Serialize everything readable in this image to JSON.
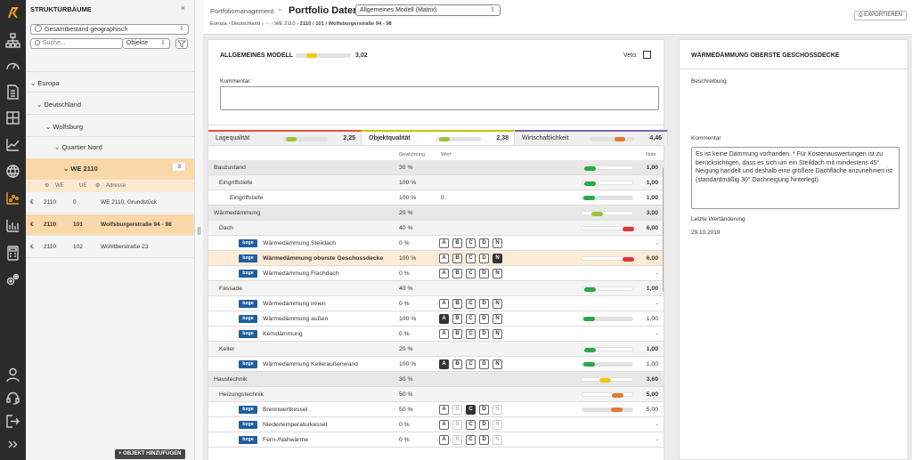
{
  "rail": {
    "icons": [
      "logo-icon",
      "hierarchy-icon",
      "dashboard-icon",
      "document-icon",
      "building-icon",
      "line-chart-icon",
      "globe-icon",
      "portfolio-chart-icon",
      "bar-chart-icon",
      "calculator-icon",
      "settings-icon",
      "user-icon",
      "support-icon",
      "logout-icon",
      "expand-icon"
    ]
  },
  "tree": {
    "title": "STRUKTURBÄUME",
    "close": "×",
    "scope": "Gesamtbestand geographisch",
    "scope_arrow": "⇕",
    "search_placeholder": "Suche...",
    "search_type": "Objekte",
    "nodes": {
      "europa": "Europa",
      "deutschland": "Deutschland",
      "wolfsburg": "Wolfsburg",
      "quartier": "Quartier Nord",
      "we": "WE 2110",
      "we_count": "3"
    },
    "cols": {
      "we": "WE",
      "ue": "UE",
      "adresse": "Adresse"
    },
    "rows": [
      {
        "cur": "€",
        "we": "2110",
        "ue": "0",
        "addr": "WE 2110, Grundstück"
      },
      {
        "cur": "€",
        "we": "2110",
        "ue": "101",
        "addr": "Wolfsburgerstraße 94 - 98"
      },
      {
        "cur": "€",
        "we": "2110",
        "ue": "102",
        "addr": "Wohltberstraße 23"
      }
    ],
    "add_button": "+ OBJEKT HINZUFÜGEN"
  },
  "header": {
    "crumb_parent": "Portfoliomanagement",
    "sep": "›",
    "title": "Portfolio Daten",
    "model_select": "Allgemeines Modell (Matrix)",
    "model_arrow": "⇕",
    "path": [
      "Europa",
      "Deutschland",
      "···",
      "WE 2110",
      "2110 / 101 / Wolfsburgerstraße 94 - 98"
    ],
    "export": "EXPORTIEREN"
  },
  "model": {
    "title": "ALLGEMEINES MODELL",
    "score": "3,02",
    "score_fill": 0.35,
    "veto": "Veto:",
    "comment_label": "Kommentar:"
  },
  "tabs": [
    {
      "label": "Lagequalität",
      "score": "2,25",
      "fill": 0.3,
      "color": "#9dc33b",
      "line": "#e0523a"
    },
    {
      "label": "Objektqualität",
      "score": "2,38",
      "fill": 0.3,
      "color": "#9dc33b",
      "line": "#c8c200"
    },
    {
      "label": "Wirtschaftlichkeit",
      "score": "4,46",
      "fill": 0.8,
      "color": "#e07b2f",
      "line": "#7b68b5"
    }
  ],
  "grid_head": {
    "gew": "Gewichtung",
    "wert": "Wert",
    "note": "Note"
  },
  "grid": [
    {
      "k": "grp",
      "ind": 6,
      "name": "Bauzustand",
      "gew": "30 %",
      "fill": 0.25,
      "color": "#2aa84a",
      "note": "1,00"
    },
    {
      "k": "sub",
      "ind": 12,
      "name": "Eingriffstiefe",
      "gew": "100 %",
      "fill": 0.25,
      "color": "#2aa84a",
      "note": "1,00"
    },
    {
      "k": "it",
      "ind": 24,
      "name": "Eingriffstiefe",
      "gew": "100 %",
      "wert": "0",
      "fill": 0.25,
      "color": "#2aa84a",
      "note": "1,00"
    },
    {
      "k": "grp",
      "ind": 6,
      "name": "Wärmedämmung",
      "gew": "20 %",
      "fill": 0.4,
      "color": "#9dc33b",
      "note": "3,00"
    },
    {
      "k": "sub",
      "ind": 12,
      "name": "Dach",
      "gew": "40 %",
      "fill": 1,
      "color": "#e0333a",
      "note": "6,00"
    },
    {
      "k": "tag",
      "name": "Wärmedämmung Steildach",
      "gew": "0 %",
      "abc": [
        "",
        "",
        "",
        "",
        ""
      ],
      "note": "-"
    },
    {
      "k": "hl",
      "name": "Wärmedämmung oberste Geschossdecke",
      "gew": "100 %",
      "abc": [
        "",
        "",
        "",
        "",
        "on"
      ],
      "fill": 1,
      "color": "#e0333a",
      "note": "6,00"
    },
    {
      "k": "tag",
      "name": "Wärmedämmung Flachdach",
      "gew": "0 %",
      "abc": [
        "",
        "",
        "",
        "",
        ""
      ],
      "note": "-"
    },
    {
      "k": "sub",
      "ind": 12,
      "name": "Fassade",
      "gew": "40 %",
      "fill": 0.25,
      "color": "#2aa84a",
      "note": "1,00"
    },
    {
      "k": "tag",
      "name": "Wärmedämmung innen",
      "gew": "0 %",
      "abc": [
        "",
        "",
        "",
        "",
        ""
      ],
      "note": "-"
    },
    {
      "k": "tag",
      "name": "Wärmedämmung außen",
      "gew": "100 %",
      "abc": [
        "on",
        "",
        "",
        "",
        ""
      ],
      "fill": 0.25,
      "color": "#2aa84a",
      "note": "1,00"
    },
    {
      "k": "tag",
      "name": "Kerndämmung",
      "gew": "0 %",
      "abc": [
        "",
        "",
        "",
        "",
        ""
      ],
      "note": "-"
    },
    {
      "k": "sub",
      "ind": 12,
      "name": "Keller",
      "gew": "20 %",
      "fill": 0.25,
      "color": "#2aa84a",
      "note": "1,00"
    },
    {
      "k": "tag",
      "name": "Wärmedämmung Kelleraußenwand",
      "gew": "100 %",
      "abc": [
        "on",
        "",
        "",
        "",
        ""
      ],
      "fill": 0.25,
      "color": "#2aa84a",
      "note": "1,00"
    },
    {
      "k": "grp",
      "ind": 6,
      "name": "Haustechnik",
      "gew": "30 %",
      "fill": 0.55,
      "color": "#f2c80f",
      "note": "3,60"
    },
    {
      "k": "sub",
      "ind": 12,
      "name": "Heizungstechnik",
      "gew": "50 %",
      "fill": 0.8,
      "color": "#e07b2f",
      "note": "5,00"
    },
    {
      "k": "tag",
      "name": "Brennwertkessel",
      "gew": "50 %",
      "abc": [
        "",
        "dim",
        "on",
        "",
        "dim"
      ],
      "fill": 0.8,
      "color": "#e07b2f",
      "note": "5,00"
    },
    {
      "k": "tag",
      "name": "Niedertemperaturkessel",
      "gew": "0 %",
      "abc": [
        "",
        "dim",
        "",
        "",
        "dim"
      ],
      "note": "-"
    },
    {
      "k": "tag",
      "name": "Fern-/Nahwärme",
      "gew": "0 %",
      "abc": [
        "",
        "dim",
        "",
        "",
        "dim"
      ],
      "note": "-"
    }
  ],
  "tagtext": "bzge",
  "letters": [
    "A",
    "B",
    "C",
    "D",
    "N"
  ],
  "detail": {
    "title": "WÄRMEDÄMMUNG OBERSTE GESCHOSSDECKE",
    "beschreibung": "Beschreibung",
    "kommentar": "Kommentar",
    "kommentar_text": "Es ist keine Dämmung vorhanden. * Für Kostenauswertungen ist zu berücksichtigen, dass es sich um ein Steildach mit mindestens 45° Neigung handelt und deshalb eine größere Dachfläche anzunehmen ist (standardmäßig 30° Dachneigung hinterlegt).",
    "last_label": "Letzte Wertänderung",
    "last_date": "29.10.2019"
  }
}
